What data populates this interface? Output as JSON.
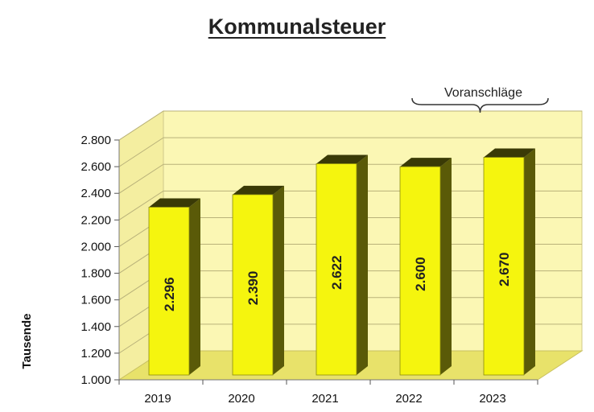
{
  "chart_data": {
    "type": "bar",
    "title": "Kommunalsteuer",
    "ylabel": "Tausende",
    "xlabel": "",
    "categories": [
      "2019",
      "2020",
      "2021",
      "2022",
      "2023"
    ],
    "values": [
      2296,
      2390,
      2622,
      2600,
      2670
    ],
    "value_labels": [
      "2.296",
      "2.390",
      "2.622",
      "2.600",
      "2.670"
    ],
    "ylim": [
      1000,
      2800
    ],
    "yticks": [
      1000,
      1200,
      1400,
      1600,
      1800,
      2000,
      2200,
      2400,
      2600,
      2800
    ],
    "ytick_labels": [
      "1.000",
      "1.200",
      "1.400",
      "1.600",
      "1.800",
      "2.000",
      "2.200",
      "2.400",
      "2.600",
      "2.800"
    ],
    "grid": true,
    "annotation": {
      "text": "Voranschläge",
      "categories": [
        "2022",
        "2023"
      ]
    },
    "colors": {
      "bar_front": "#f5f50e",
      "bar_side": "#5a5a08",
      "bar_top": "#3a3a06",
      "wall": "#fbf7b4",
      "floor": "#e8e26a"
    }
  }
}
